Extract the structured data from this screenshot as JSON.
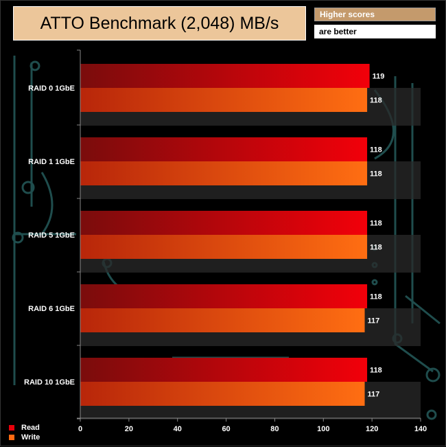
{
  "header": {
    "title": "ATTO Benchmark (2,048) MB/s",
    "note_line1": "Higher scores",
    "note_line2": "are better"
  },
  "colors": {
    "read": "#E8000A",
    "read_dark": "#8B0A0A",
    "write": "#FF6A12",
    "write_dark": "#C42A0A",
    "title_bg": "#ECC69A",
    "note_bg": "#C49A6C",
    "circuit": "#1F4D4D"
  },
  "chart_data": {
    "type": "bar",
    "orientation": "horizontal",
    "categories": [
      "RAID 0 1GbE",
      "RAID 1 1GbE",
      "RAID 5 1GbE",
      "RAID 6 1GbE",
      "RAID 10 1GbE"
    ],
    "series": [
      {
        "name": "Read",
        "values": [
          119,
          118,
          118,
          118,
          118
        ]
      },
      {
        "name": "Write",
        "values": [
          118,
          118,
          118,
          117,
          117
        ]
      }
    ],
    "xlim": [
      0,
      140
    ],
    "xticks": [
      0,
      20,
      40,
      60,
      80,
      100,
      120,
      140
    ],
    "title": "ATTO Benchmark (2,048) MB/s",
    "legend_position": "bottom-left",
    "grid": false
  }
}
